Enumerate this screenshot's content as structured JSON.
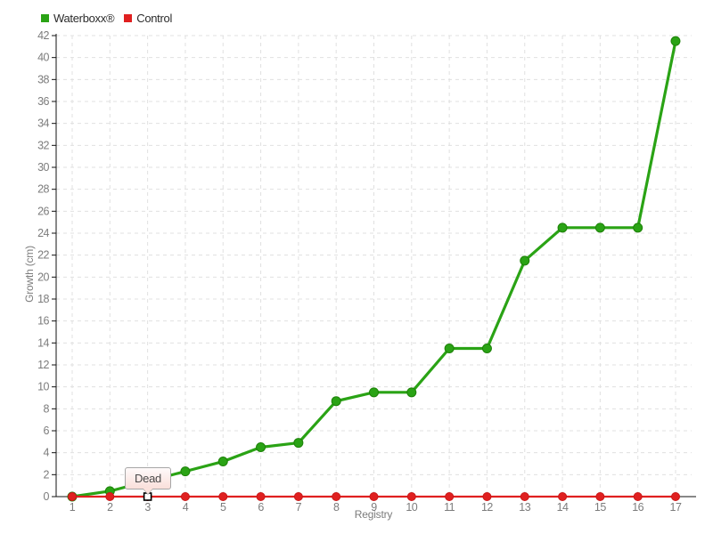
{
  "legend": [
    {
      "label": "Waterboxx®",
      "color": "#2aa315"
    },
    {
      "label": "Control",
      "color": "#e02020"
    }
  ],
  "chart_data": {
    "type": "line",
    "title": "",
    "xlabel": "Registry",
    "ylabel": "Growth (cm)",
    "x": [
      1,
      2,
      3,
      4,
      5,
      6,
      7,
      8,
      9,
      10,
      11,
      12,
      13,
      14,
      15,
      16,
      17
    ],
    "xlim": [
      1,
      17
    ],
    "ylim": [
      0,
      42
    ],
    "yticks": [
      0,
      2,
      4,
      6,
      8,
      10,
      12,
      14,
      16,
      18,
      20,
      22,
      24,
      26,
      28,
      30,
      32,
      34,
      36,
      38,
      40,
      42
    ],
    "grid": true,
    "grid_style": "dashed",
    "legend_position": "top-left",
    "series": [
      {
        "name": "Waterboxx®",
        "color": "#2aa315",
        "marker": "circle",
        "values": [
          0,
          0.5,
          1.4,
          2.3,
          3.2,
          4.5,
          4.9,
          8.7,
          9.5,
          9.5,
          13.5,
          13.5,
          21.5,
          24.5,
          24.5,
          24.5,
          41.5
        ]
      },
      {
        "name": "Control",
        "color": "#e02020",
        "marker": "circle",
        "values": [
          0,
          0,
          0,
          0,
          0,
          0,
          0,
          0,
          0,
          0,
          0,
          0,
          0,
          0,
          0,
          0,
          0
        ]
      }
    ],
    "tooltip": {
      "text": "Dead",
      "series": "Control",
      "x": 3,
      "y": 0
    }
  },
  "colors": {
    "grid": "#e0e0e0",
    "axis": "#111111",
    "tick_text": "#7c7c7c",
    "tooltip_bg": "#fbe2dd",
    "tooltip_border": "#a6a6a6"
  }
}
